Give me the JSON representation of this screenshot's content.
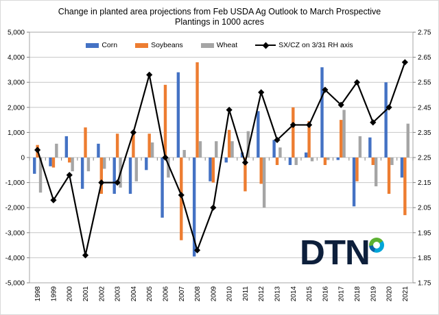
{
  "title": {
    "line1": "Change in planted area projections from Feb USDA Ag Outlook to March Prospective",
    "line2": "Plantings in 1000 acres"
  },
  "legend": {
    "items": [
      {
        "label": "Corn",
        "color": "#4472C4"
      },
      {
        "label": "Soybeans",
        "color": "#ED7D31"
      },
      {
        "label": "Wheat",
        "color": "#A5A5A5"
      },
      {
        "label": "SX/CZ on 3/31 RH axis",
        "color": "#000000",
        "marker": "diamond"
      }
    ]
  },
  "logo": {
    "text": "DTN",
    "navy": "#0D1F3B",
    "green": "#5CB131",
    "cyan": "#00A5D8",
    "blue": "#0C62A6"
  },
  "chart_data": {
    "type": "combo",
    "title": "Change in planted area projections from Feb USDA Ag Outlook to March Prospective Plantings in 1000 acres",
    "units": "1000 acres (bars, left axis); price ratio (line, right axis)",
    "grid": true,
    "legend_position": "top",
    "categories": [
      "1998",
      "1999",
      "2000",
      "2001",
      "2002",
      "2003",
      "2004",
      "2005",
      "2006",
      "2007",
      "2008",
      "2009",
      "2010",
      "2011",
      "2012",
      "2013",
      "2014",
      "2015",
      "2016",
      "2017",
      "2018",
      "2019",
      "2020",
      "2021"
    ],
    "left_axis": {
      "range": [
        -5000,
        5000
      ],
      "tick_step": 1000,
      "tick_labels": [
        "5,000",
        "4,000",
        "3,000",
        "2,000",
        "1,000",
        "0",
        "-1,000",
        "-2,000",
        "-3,000",
        "-4,000",
        "-5,000"
      ]
    },
    "right_axis": {
      "range": [
        1.75,
        2.75
      ],
      "tick_step": 0.1,
      "tick_labels": [
        "2.75",
        "2.65",
        "2.55",
        "2.45",
        "2.35",
        "2.25",
        "2.15",
        "2.05",
        "1.95",
        "1.85",
        "1.75"
      ]
    },
    "series": [
      {
        "name": "Corn",
        "type": "bar",
        "axis": "left",
        "color": "#4472C4",
        "values": [
          -650,
          -350,
          850,
          -1250,
          550,
          -1450,
          -1450,
          -500,
          -2400,
          3400,
          -3950,
          -950,
          -200,
          200,
          1850,
          700,
          -300,
          200,
          3600,
          -100,
          -1950,
          800,
          3000,
          -800
        ]
      },
      {
        "name": "Soybeans",
        "type": "bar",
        "axis": "left",
        "color": "#ED7D31",
        "values": [
          500,
          -400,
          -200,
          1200,
          -1450,
          950,
          1000,
          950,
          2900,
          -3300,
          3800,
          -1000,
          1100,
          -1350,
          -1050,
          -300,
          2000,
          1450,
          -300,
          1500,
          -950,
          -300,
          -1450,
          -2300
        ]
      },
      {
        "name": "Wheat",
        "type": "bar",
        "axis": "left",
        "color": "#A5A5A5",
        "values": [
          -1400,
          550,
          -550,
          -550,
          -450,
          -1200,
          -950,
          600,
          -800,
          300,
          650,
          650,
          650,
          1050,
          -2000,
          400,
          -300,
          -150,
          -100,
          1900,
          850,
          -1150,
          -300,
          1350
        ]
      },
      {
        "name": "SX/CZ on 3/31 RH axis",
        "type": "line",
        "axis": "right",
        "color": "#000000",
        "marker": "diamond",
        "values": [
          2.28,
          2.08,
          2.18,
          1.86,
          2.15,
          2.15,
          2.35,
          2.58,
          2.25,
          2.1,
          1.88,
          2.05,
          2.44,
          2.23,
          2.51,
          2.32,
          2.38,
          2.38,
          2.52,
          2.46,
          2.55,
          2.39,
          2.45,
          2.63
        ]
      }
    ]
  }
}
